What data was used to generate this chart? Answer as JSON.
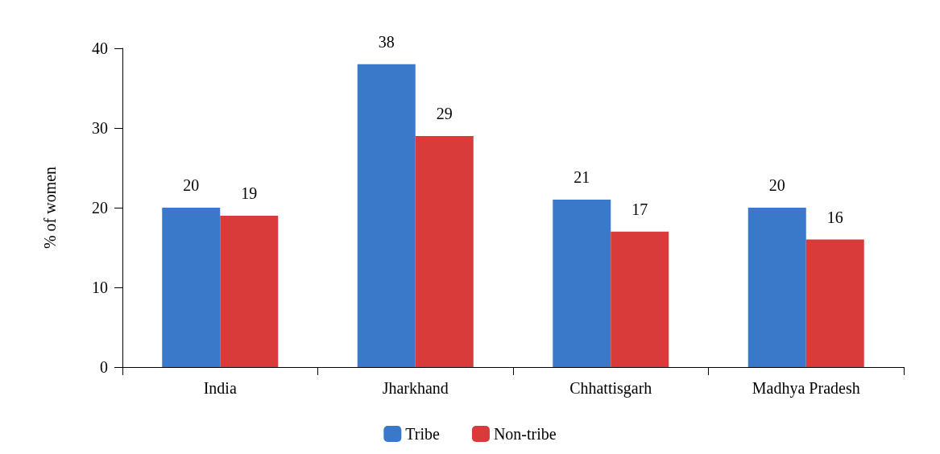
{
  "chart_data": {
    "type": "bar",
    "ylabel": "% of women",
    "categories": [
      "India",
      "Jharkhand",
      "Chhattisgarh",
      "Madhya Pradesh"
    ],
    "series": [
      {
        "name": "Tribe",
        "color": "#3a78c9",
        "values": [
          20,
          38,
          21,
          20
        ]
      },
      {
        "name": "Non-tribe",
        "color": "#d93a3a",
        "values": [
          19,
          29,
          17,
          16
        ]
      }
    ],
    "ylim": [
      0,
      40
    ],
    "yticks": [
      0,
      10,
      20,
      30,
      40
    ],
    "data_labels": true,
    "legend": "bottom",
    "grid": false
  }
}
